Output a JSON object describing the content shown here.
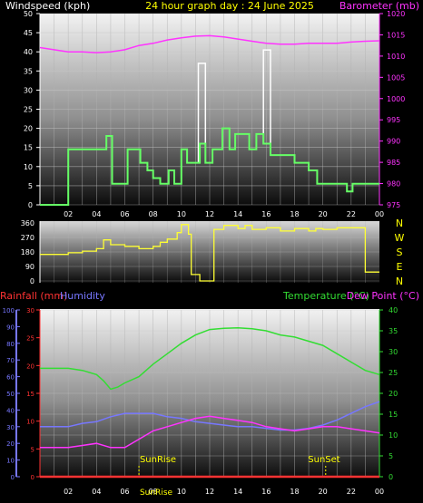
{
  "header": {
    "windspeed_label": "Windspeed (kph)",
    "title": "24 hour graph day : 24 June 2025",
    "barometer_label": "Barometer (mb)"
  },
  "colors": {
    "wind": "#66ff66",
    "gust": "#ffffff",
    "barometer": "#ff33ff",
    "direction": "#ffff33",
    "rainfall": "#ff3333",
    "humidity": "#7777ff",
    "temperature": "#33dd33",
    "dewpoint": "#ff33ff",
    "title": "#ffff00"
  },
  "chart_data": [
    {
      "type": "line",
      "name": "wind-panel",
      "x_ticks": [
        "02",
        "04",
        "06",
        "08",
        "10",
        "12",
        "14",
        "16",
        "18",
        "20",
        "22",
        "00"
      ],
      "xlim": [
        0,
        24
      ],
      "ylim_left": [
        0,
        50
      ],
      "ylim_right": [
        975,
        1020
      ],
      "y_ticks_left": [
        "0",
        "5",
        "10",
        "15",
        "20",
        "25",
        "30",
        "35",
        "40",
        "45",
        "50"
      ],
      "y_ticks_right": [
        "975",
        "980",
        "985",
        "990",
        "995",
        "1000",
        "1005",
        "1010",
        "1015",
        "1020"
      ],
      "wind_series": [
        [
          0,
          0
        ],
        [
          2,
          0
        ],
        [
          2,
          14.5
        ],
        [
          4.7,
          14.5
        ],
        [
          4.7,
          18
        ],
        [
          5.1,
          18
        ],
        [
          5.1,
          5.5
        ],
        [
          6.2,
          5.5
        ],
        [
          6.2,
          14.5
        ],
        [
          7.1,
          14.5
        ],
        [
          7.1,
          11
        ],
        [
          7.6,
          11
        ],
        [
          7.6,
          9
        ],
        [
          8,
          9
        ],
        [
          8,
          7
        ],
        [
          8.5,
          7
        ],
        [
          8.5,
          5.5
        ],
        [
          9.1,
          5.5
        ],
        [
          9.1,
          9
        ],
        [
          9.5,
          9
        ],
        [
          9.5,
          5.5
        ],
        [
          10,
          5.5
        ],
        [
          10,
          14.5
        ],
        [
          10.4,
          14.5
        ],
        [
          10.4,
          11
        ],
        [
          11.3,
          11
        ],
        [
          11.3,
          16
        ],
        [
          11.7,
          16
        ],
        [
          11.7,
          11
        ],
        [
          12.2,
          11
        ],
        [
          12.2,
          14.5
        ],
        [
          12.9,
          14.5
        ],
        [
          12.9,
          20
        ],
        [
          13.4,
          20
        ],
        [
          13.4,
          14.5
        ],
        [
          13.8,
          14.5
        ],
        [
          13.8,
          18.5
        ],
        [
          14.8,
          18.5
        ],
        [
          14.8,
          14.5
        ],
        [
          15.3,
          14.5
        ],
        [
          15.3,
          18.5
        ],
        [
          15.8,
          18.5
        ],
        [
          15.8,
          16
        ],
        [
          16.3,
          16
        ],
        [
          16.3,
          13
        ],
        [
          18,
          13
        ],
        [
          18,
          11
        ],
        [
          19,
          11
        ],
        [
          19,
          9
        ],
        [
          19.6,
          9
        ],
        [
          19.6,
          5.5
        ],
        [
          21.7,
          5.5
        ],
        [
          21.7,
          3.5
        ],
        [
          22.1,
          3.5
        ],
        [
          22.1,
          5.5
        ],
        [
          24,
          5.5
        ]
      ],
      "gust_series": [
        [
          11.2,
          11
        ],
        [
          11.2,
          37
        ],
        [
          11.7,
          37
        ],
        [
          11.7,
          11
        ],
        [
          15.8,
          16
        ],
        [
          15.8,
          40.5
        ],
        [
          16.3,
          40.5
        ],
        [
          16.3,
          16
        ]
      ],
      "barometer_series": [
        [
          0,
          1012
        ],
        [
          1,
          1011.5
        ],
        [
          2,
          1011
        ],
        [
          3,
          1011
        ],
        [
          4,
          1010.8
        ],
        [
          5,
          1011
        ],
        [
          6,
          1011.5
        ],
        [
          7,
          1012.5
        ],
        [
          8,
          1013
        ],
        [
          9,
          1013.8
        ],
        [
          10,
          1014.3
        ],
        [
          11,
          1014.7
        ],
        [
          12,
          1014.8
        ],
        [
          13,
          1014.5
        ],
        [
          14,
          1014
        ],
        [
          15,
          1013.5
        ],
        [
          16,
          1013
        ],
        [
          17,
          1012.8
        ],
        [
          18,
          1012.8
        ],
        [
          19,
          1013
        ],
        [
          20,
          1013
        ],
        [
          21,
          1013
        ],
        [
          22,
          1013.3
        ],
        [
          23,
          1013.5
        ],
        [
          24,
          1013.6
        ]
      ]
    },
    {
      "type": "line",
      "name": "direction-panel",
      "xlim": [
        0,
        24
      ],
      "ylim": [
        0,
        360
      ],
      "y_ticks": [
        "0",
        "90",
        "180",
        "270",
        "360"
      ],
      "compass_labels": [
        "N",
        "W",
        "S",
        "E",
        "N"
      ],
      "series": [
        [
          0,
          165
        ],
        [
          2,
          165
        ],
        [
          2,
          175
        ],
        [
          3,
          175
        ],
        [
          3,
          185
        ],
        [
          4,
          185
        ],
        [
          4,
          200
        ],
        [
          4.5,
          200
        ],
        [
          4.5,
          255
        ],
        [
          5,
          255
        ],
        [
          5,
          225
        ],
        [
          6,
          225
        ],
        [
          6,
          215
        ],
        [
          7,
          215
        ],
        [
          7,
          200
        ],
        [
          8,
          200
        ],
        [
          8,
          215
        ],
        [
          8.5,
          215
        ],
        [
          8.5,
          240
        ],
        [
          9,
          240
        ],
        [
          9,
          260
        ],
        [
          9.7,
          260
        ],
        [
          9.7,
          300
        ],
        [
          10,
          300
        ],
        [
          10,
          350
        ],
        [
          10.5,
          350
        ],
        [
          10.5,
          290
        ],
        [
          10.7,
          290
        ],
        [
          10.7,
          40
        ],
        [
          11.3,
          40
        ],
        [
          11.3,
          0
        ],
        [
          12.3,
          0
        ],
        [
          12.3,
          320
        ],
        [
          13,
          320
        ],
        [
          13,
          345
        ],
        [
          14,
          345
        ],
        [
          14,
          325
        ],
        [
          14.5,
          325
        ],
        [
          14.5,
          345
        ],
        [
          15,
          345
        ],
        [
          15,
          320
        ],
        [
          16,
          320
        ],
        [
          16,
          330
        ],
        [
          17,
          330
        ],
        [
          17,
          310
        ],
        [
          18,
          310
        ],
        [
          18,
          325
        ],
        [
          19,
          325
        ],
        [
          19,
          310
        ],
        [
          19.5,
          310
        ],
        [
          19.5,
          325
        ],
        [
          20,
          325
        ],
        [
          20,
          320
        ],
        [
          21,
          320
        ],
        [
          21,
          330
        ],
        [
          23,
          330
        ],
        [
          23,
          55
        ],
        [
          24,
          55
        ]
      ]
    },
    {
      "type": "line",
      "name": "temperature-panel",
      "x_ticks": [
        "02",
        "04",
        "06",
        "08",
        "10",
        "12",
        "14",
        "16",
        "18",
        "20",
        "22",
        "00"
      ],
      "xlim": [
        0,
        24
      ],
      "ylim_rain": [
        0,
        30
      ],
      "ylim_humidity": [
        0,
        100
      ],
      "ylim_temp": [
        0,
        40
      ],
      "y_ticks_rain": [
        "0",
        "5",
        "10",
        "15",
        "20",
        "25",
        "30"
      ],
      "y_ticks_humidity": [
        "0",
        "10",
        "20",
        "30",
        "40",
        "50",
        "60",
        "70",
        "80",
        "90",
        "100"
      ],
      "y_ticks_temp": [
        "0",
        "5",
        "10",
        "15",
        "20",
        "25",
        "30",
        "35",
        "40"
      ],
      "labels": {
        "rainfall": "Rainfall (mm)",
        "humidity": "Humidity",
        "temperature": "Temperature (°C)",
        "dewpoint": "Dew Point (°C)",
        "sunrise": "SunRise",
        "sunset": "SunSet",
        "sunrise_foot": "SunRise"
      },
      "sunrise_hour": 7,
      "sunset_hour": 20.2,
      "temperature_series": [
        [
          0,
          26
        ],
        [
          2,
          26
        ],
        [
          3,
          25.5
        ],
        [
          4,
          24.5
        ],
        [
          4.5,
          23
        ],
        [
          5,
          21
        ],
        [
          5.5,
          21.5
        ],
        [
          6,
          22.5
        ],
        [
          7,
          24
        ],
        [
          8,
          27
        ],
        [
          9,
          29.5
        ],
        [
          10,
          32
        ],
        [
          11,
          34
        ],
        [
          12,
          35.3
        ],
        [
          13,
          35.6
        ],
        [
          14,
          35.7
        ],
        [
          15,
          35.5
        ],
        [
          16,
          35
        ],
        [
          17,
          34
        ],
        [
          18,
          33.5
        ],
        [
          19,
          32.5
        ],
        [
          20,
          31.5
        ],
        [
          21,
          29.5
        ],
        [
          22,
          27.5
        ],
        [
          23,
          25.5
        ],
        [
          24,
          24.5
        ]
      ],
      "humidity_series": [
        [
          0,
          30
        ],
        [
          2,
          30
        ],
        [
          3,
          32
        ],
        [
          4,
          33
        ],
        [
          5,
          36
        ],
        [
          6,
          38
        ],
        [
          7,
          38
        ],
        [
          8,
          38
        ],
        [
          9,
          36
        ],
        [
          10,
          35
        ],
        [
          11,
          33
        ],
        [
          12,
          32
        ],
        [
          13,
          31
        ],
        [
          14,
          30
        ],
        [
          15,
          30
        ],
        [
          16,
          29
        ],
        [
          17,
          28
        ],
        [
          18,
          28
        ],
        [
          19,
          29
        ],
        [
          20,
          31
        ],
        [
          21,
          34
        ],
        [
          22,
          38
        ],
        [
          23,
          42
        ],
        [
          24,
          45
        ]
      ],
      "dewpoint_series": [
        [
          0,
          7
        ],
        [
          2,
          7
        ],
        [
          3,
          7.5
        ],
        [
          4,
          8
        ],
        [
          5,
          7
        ],
        [
          6,
          7
        ],
        [
          7,
          9
        ],
        [
          8,
          11
        ],
        [
          9,
          12
        ],
        [
          10,
          13
        ],
        [
          11,
          14
        ],
        [
          12,
          14.5
        ],
        [
          13,
          14
        ],
        [
          14,
          13.5
        ],
        [
          15,
          13
        ],
        [
          16,
          12
        ],
        [
          17,
          11.5
        ],
        [
          18,
          11
        ],
        [
          19,
          11.5
        ],
        [
          20,
          12
        ],
        [
          21,
          12
        ],
        [
          22,
          11.5
        ],
        [
          23,
          11
        ],
        [
          24,
          10.5
        ]
      ],
      "rainfall_series": [
        [
          0,
          0
        ],
        [
          24,
          0
        ]
      ]
    }
  ]
}
